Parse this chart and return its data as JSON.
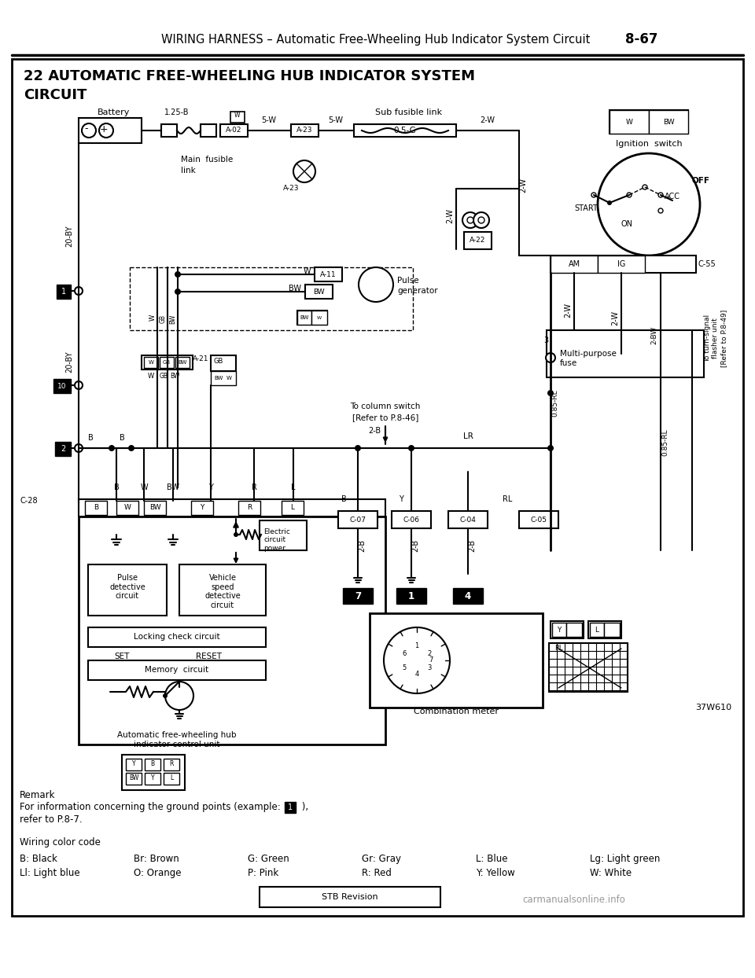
{
  "page_title_left": "WIRING HARNESS – Automatic Free-Wheeling Hub Indicator System Circuit ",
  "page_title_bold": "8-67",
  "diagram_title_line1": "22 AUTOMATIC FREE-WHEELING HUB INDICATOR SYSTEM",
  "diagram_title_line2": "CIRCUIT",
  "bg_color": "#ffffff",
  "remark_line1": "Remark",
  "remark_line2": "For information concerning the ground points (example:   ),",
  "remark_line3": "refer to P.8-7.",
  "wc_title": "Wiring color code",
  "wc_row1": [
    [
      "B: Black",
      "Br: Brown",
      "G: Green",
      "Gr: Gray",
      "L: Blue",
      "Lg: Light green"
    ]
  ],
  "wc_row2": [
    [
      "Ll: Light blue",
      "O: Orange",
      "P: Pink",
      "R: Red",
      "Y: Yellow",
      "W: White"
    ]
  ],
  "stb_revision": "STB Revision",
  "part_number": "37W610",
  "watermark": "carmanualsonline.info"
}
